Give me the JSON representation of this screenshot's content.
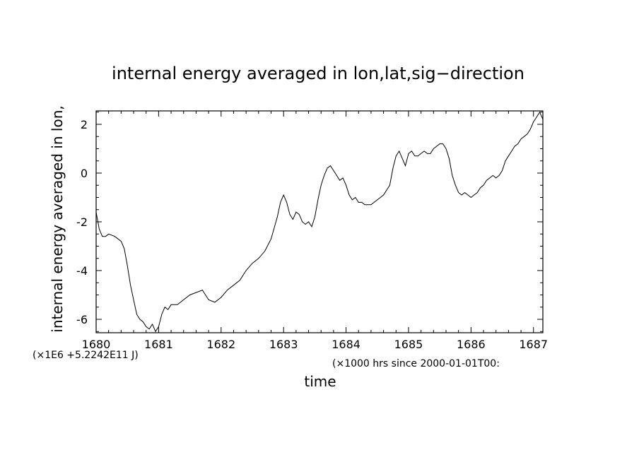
{
  "chart_data": {
    "type": "line",
    "title": "internal energy averaged in lon,lat,sig−direction",
    "xlabel": "time",
    "ylabel": "internal energy averaged in lon,",
    "y_scale_note": "(×1E6 +5.2242E11 J)",
    "x_unit_note": "(×1000 hrs  since 2000-01-01T00:",
    "xlim": [
      1680,
      1687.15
    ],
    "ylim": [
      -6.55,
      2.55
    ],
    "x_ticks": [
      1680,
      1681,
      1682,
      1683,
      1684,
      1685,
      1686,
      1687
    ],
    "y_ticks": [
      2,
      0,
      -2,
      -4,
      -6
    ],
    "series": [
      {
        "x": [
          1680.0,
          1680.05,
          1680.1,
          1680.15,
          1680.2,
          1680.3,
          1680.4,
          1680.45,
          1680.5,
          1680.55,
          1680.6,
          1680.65,
          1680.7,
          1680.75,
          1680.8,
          1680.85,
          1680.9,
          1680.95,
          1681.0,
          1681.05,
          1681.1,
          1681.15,
          1681.2,
          1681.3,
          1681.4,
          1681.5,
          1681.6,
          1681.7,
          1681.8,
          1681.9,
          1682.0,
          1682.1,
          1682.2,
          1682.3,
          1682.4,
          1682.5,
          1682.6,
          1682.7,
          1682.8,
          1682.9,
          1682.95,
          1683.0,
          1683.05,
          1683.1,
          1683.15,
          1683.2,
          1683.25,
          1683.3,
          1683.35,
          1683.4,
          1683.45,
          1683.5,
          1683.55,
          1683.6,
          1683.65,
          1683.7,
          1683.75,
          1683.8,
          1683.85,
          1683.9,
          1683.95,
          1684.0,
          1684.05,
          1684.1,
          1684.15,
          1684.2,
          1684.25,
          1684.3,
          1684.4,
          1684.5,
          1684.6,
          1684.7,
          1684.75,
          1684.8,
          1684.85,
          1684.9,
          1684.95,
          1685.0,
          1685.05,
          1685.1,
          1685.15,
          1685.2,
          1685.25,
          1685.3,
          1685.35,
          1685.4,
          1685.45,
          1685.5,
          1685.55,
          1685.6,
          1685.65,
          1685.7,
          1685.75,
          1685.8,
          1685.85,
          1685.9,
          1685.95,
          1686.0,
          1686.05,
          1686.1,
          1686.15,
          1686.2,
          1686.25,
          1686.3,
          1686.35,
          1686.4,
          1686.45,
          1686.5,
          1686.55,
          1686.6,
          1686.65,
          1686.7,
          1686.75,
          1686.8,
          1686.85,
          1686.9,
          1686.95,
          1687.0,
          1687.05,
          1687.1,
          1687.15
        ],
        "y": [
          -1.6,
          -2.3,
          -2.6,
          -2.6,
          -2.5,
          -2.6,
          -2.8,
          -3.1,
          -3.8,
          -4.6,
          -5.2,
          -5.8,
          -6.0,
          -6.1,
          -6.3,
          -6.4,
          -6.2,
          -6.5,
          -6.3,
          -5.8,
          -5.5,
          -5.6,
          -5.4,
          -5.4,
          -5.2,
          -5.0,
          -4.9,
          -4.8,
          -5.2,
          -5.3,
          -5.1,
          -4.8,
          -4.6,
          -4.4,
          -4.0,
          -3.7,
          -3.5,
          -3.2,
          -2.7,
          -1.8,
          -1.2,
          -0.9,
          -1.2,
          -1.7,
          -1.9,
          -1.6,
          -1.7,
          -2.0,
          -2.1,
          -2.0,
          -2.2,
          -1.8,
          -1.1,
          -0.5,
          -0.1,
          0.2,
          0.3,
          0.1,
          -0.1,
          -0.3,
          -0.2,
          -0.5,
          -0.9,
          -1.1,
          -1.0,
          -1.2,
          -1.2,
          -1.3,
          -1.3,
          -1.1,
          -0.9,
          -0.5,
          0.2,
          0.7,
          0.9,
          0.6,
          0.3,
          0.8,
          0.9,
          0.7,
          0.7,
          0.8,
          0.9,
          0.8,
          0.8,
          1.0,
          1.1,
          1.2,
          1.2,
          1.0,
          0.6,
          -0.1,
          -0.5,
          -0.8,
          -0.9,
          -0.8,
          -0.9,
          -1.0,
          -0.9,
          -0.8,
          -0.6,
          -0.5,
          -0.3,
          -0.2,
          -0.1,
          -0.2,
          -0.1,
          0.1,
          0.5,
          0.7,
          0.9,
          1.1,
          1.2,
          1.4,
          1.5,
          1.6,
          1.8,
          2.1,
          2.3,
          2.5,
          2.2
        ]
      }
    ]
  }
}
